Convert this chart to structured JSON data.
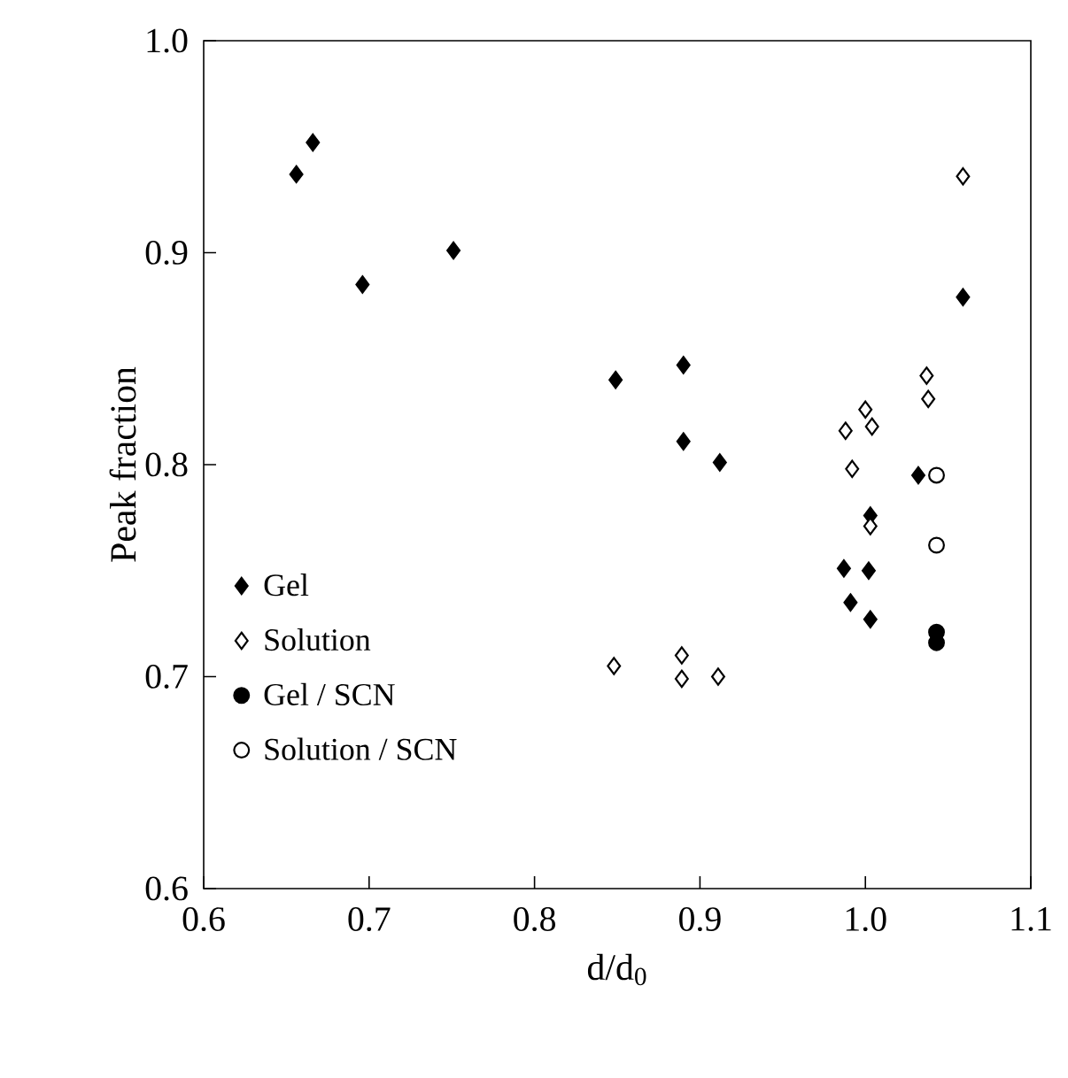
{
  "chart_data": {
    "type": "scatter",
    "xlabel": "d/d$_{0}$",
    "ylabel": "Peak fraction",
    "xlim": [
      0.6,
      1.1
    ],
    "ylim": [
      0.6,
      1.0
    ],
    "xticks": [
      {
        "value": 0.6,
        "label": "0.6"
      },
      {
        "value": 0.7,
        "label": "0.7"
      },
      {
        "value": 0.8,
        "label": "0.8"
      },
      {
        "value": 0.9,
        "label": "0.9"
      },
      {
        "value": 1.0,
        "label": "1.0"
      },
      {
        "value": 1.1,
        "label": "1.1"
      }
    ],
    "yticks": [
      {
        "value": 0.6,
        "label": "0.6"
      },
      {
        "value": 0.7,
        "label": "0.7"
      },
      {
        "value": 0.8,
        "label": "0.8"
      },
      {
        "value": 0.9,
        "label": "0.9"
      },
      {
        "value": 1.0,
        "label": "1.0"
      }
    ],
    "grid": false,
    "legend": "bottom left",
    "series": [
      {
        "name": "Gel",
        "color": "#000000",
        "marker": "diamond",
        "x": [
          0.656,
          0.666,
          0.696,
          0.751,
          0.849,
          0.89,
          0.89,
          0.912,
          1.059,
          1.032,
          1.003,
          0.987,
          1.002,
          0.991,
          1.003
        ],
        "values": [
          0.937,
          0.952,
          0.885,
          0.901,
          0.84,
          0.847,
          0.811,
          0.801,
          0.879,
          0.795,
          0.776,
          0.751,
          0.75,
          0.735,
          0.727
        ]
      },
      {
        "name": "Solution",
        "color": "#000000",
        "marker": "diamond-open",
        "x": [
          1.059,
          1.037,
          1.038,
          1.0,
          1.004,
          0.988,
          0.992,
          1.003,
          0.848,
          0.889,
          0.889,
          0.911
        ],
        "values": [
          0.936,
          0.842,
          0.831,
          0.826,
          0.818,
          0.816,
          0.798,
          0.771,
          0.705,
          0.71,
          0.699,
          0.7
        ]
      },
      {
        "name": "Gel / SCN",
        "color": "#000000",
        "marker": "circle",
        "x": [
          1.043,
          1.043
        ],
        "values": [
          0.721,
          0.716
        ]
      },
      {
        "name": "Solution / SCN",
        "color": "#000000",
        "marker": "circle-open",
        "x": [
          1.043,
          1.043
        ],
        "values": [
          0.795,
          0.762
        ]
      }
    ]
  }
}
